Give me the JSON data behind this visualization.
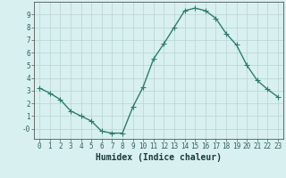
{
  "x": [
    0,
    1,
    2,
    3,
    4,
    5,
    6,
    7,
    8,
    9,
    10,
    11,
    12,
    13,
    14,
    15,
    16,
    17,
    18,
    19,
    20,
    21,
    22,
    23
  ],
  "y": [
    3.2,
    2.8,
    2.3,
    1.4,
    1.0,
    0.6,
    -0.2,
    -0.35,
    -0.35,
    1.7,
    3.3,
    5.5,
    6.7,
    8.0,
    9.3,
    9.5,
    9.3,
    8.7,
    7.5,
    6.6,
    5.0,
    3.8,
    3.1,
    2.5
  ],
  "line_color": "#2e7d6e",
  "marker": "+",
  "markersize": 4,
  "linewidth": 1.0,
  "xlabel": "Humidex (Indice chaleur)",
  "xlabel_fontsize": 7,
  "bg_color": "#d8f0ef",
  "grid_color": "#b8d4d2",
  "axis_color": "#555555",
  "ylim": [
    -0.8,
    10.0
  ],
  "xlim": [
    -0.5,
    23.5
  ],
  "yticks": [
    0,
    1,
    2,
    3,
    4,
    5,
    6,
    7,
    8,
    9
  ],
  "ytick_labels": [
    "-0",
    "1",
    "2",
    "3",
    "4",
    "5",
    "6",
    "7",
    "8",
    "9"
  ],
  "xticks": [
    0,
    1,
    2,
    3,
    4,
    5,
    6,
    7,
    8,
    9,
    10,
    11,
    12,
    13,
    14,
    15,
    16,
    17,
    18,
    19,
    20,
    21,
    22,
    23
  ],
  "tick_fontsize": 5.5
}
